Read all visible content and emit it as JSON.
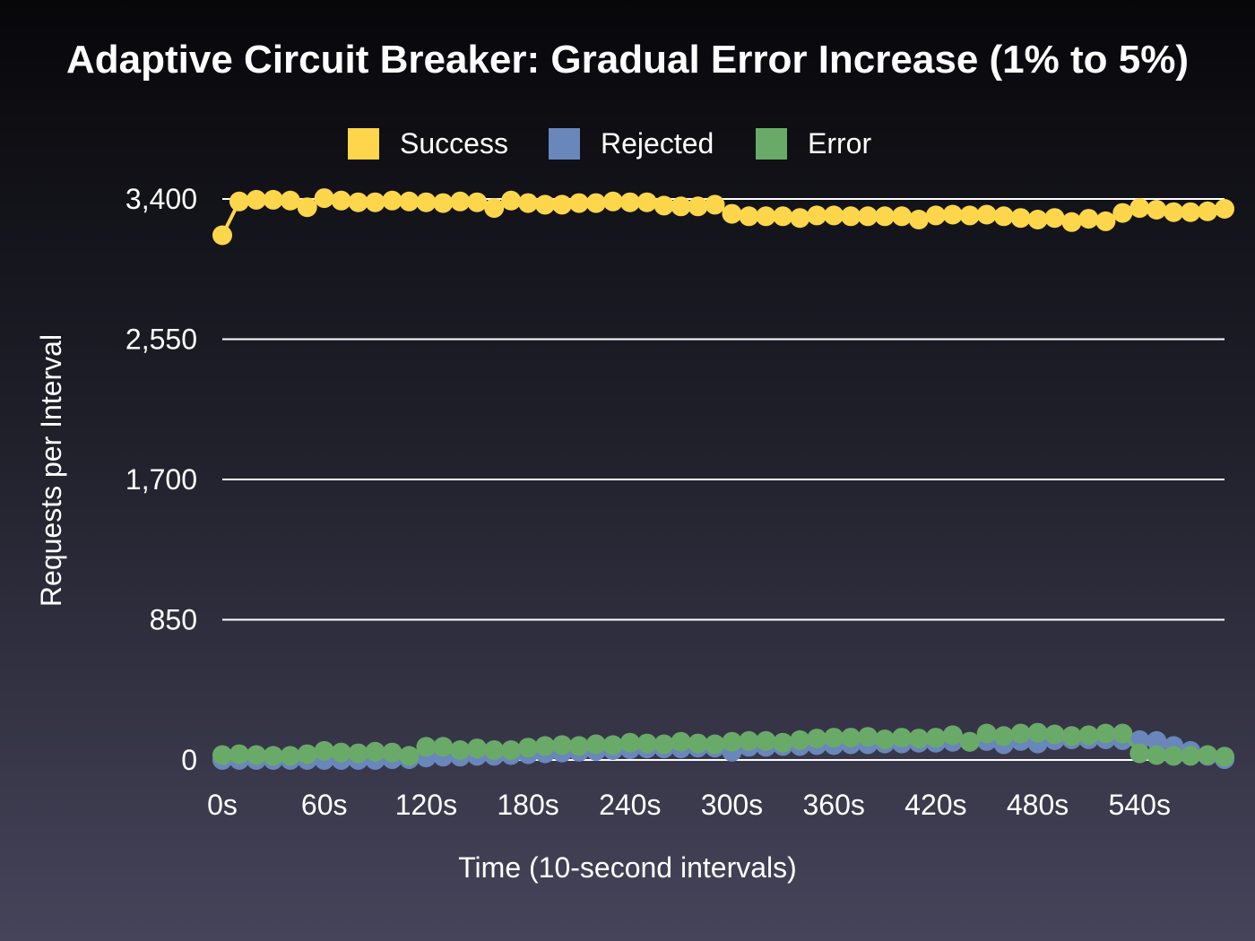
{
  "chart_data": {
    "type": "line",
    "title": "Adaptive Circuit Breaker: Gradual Error Increase (1% to 5%)",
    "xlabel": "Time (10-second intervals)",
    "ylabel": "Requests per Interval",
    "x_unit": "s",
    "x_start": 0,
    "x_step": 10,
    "x_ticks": [
      "0s",
      "60s",
      "120s",
      "180s",
      "240s",
      "300s",
      "360s",
      "420s",
      "480s",
      "540s"
    ],
    "y_ticks": [
      "0",
      "850",
      "1,700",
      "2,550",
      "3,400"
    ],
    "ylim": [
      0,
      3400
    ],
    "xlim": [
      0,
      590
    ],
    "grid": true,
    "legend_position": "top-center",
    "series": [
      {
        "name": "Success",
        "color": "#fdd64b",
        "values": [
          3180,
          3385,
          3395,
          3395,
          3390,
          3350,
          3405,
          3390,
          3380,
          3380,
          3390,
          3385,
          3380,
          3375,
          3385,
          3380,
          3345,
          3390,
          3375,
          3365,
          3365,
          3375,
          3375,
          3385,
          3380,
          3380,
          3360,
          3355,
          3355,
          3365,
          3310,
          3295,
          3295,
          3295,
          3285,
          3300,
          3300,
          3295,
          3295,
          3295,
          3295,
          3275,
          3300,
          3305,
          3300,
          3305,
          3295,
          3285,
          3275,
          3285,
          3260,
          3280,
          3265,
          3315,
          3345,
          3335,
          3320,
          3320,
          3325,
          3340
        ]
      },
      {
        "name": "Rejected",
        "color": "#6987ba",
        "values": [
          0,
          0,
          0,
          0,
          0,
          0,
          0,
          0,
          0,
          0,
          5,
          5,
          15,
          20,
          20,
          25,
          25,
          30,
          35,
          40,
          45,
          50,
          55,
          60,
          65,
          70,
          70,
          70,
          75,
          75,
          50,
          80,
          80,
          85,
          85,
          90,
          90,
          95,
          95,
          100,
          100,
          105,
          105,
          110,
          110,
          115,
          95,
          115,
          100,
          120,
          125,
          125,
          125,
          120,
          120,
          115,
          85,
          55,
          25,
          5
        ]
      },
      {
        "name": "Error",
        "color": "#6aaa68",
        "values": [
          30,
          35,
          30,
          25,
          25,
          35,
          55,
          45,
          40,
          50,
          45,
          25,
          80,
          80,
          60,
          70,
          60,
          60,
          75,
          85,
          90,
          85,
          95,
          90,
          105,
          100,
          95,
          110,
          100,
          95,
          110,
          115,
          115,
          105,
          120,
          130,
          135,
          135,
          140,
          125,
          135,
          130,
          135,
          150,
          110,
          160,
          145,
          160,
          165,
          155,
          145,
          150,
          160,
          160,
          40,
          30,
          25,
          25,
          30,
          20
        ]
      }
    ]
  }
}
